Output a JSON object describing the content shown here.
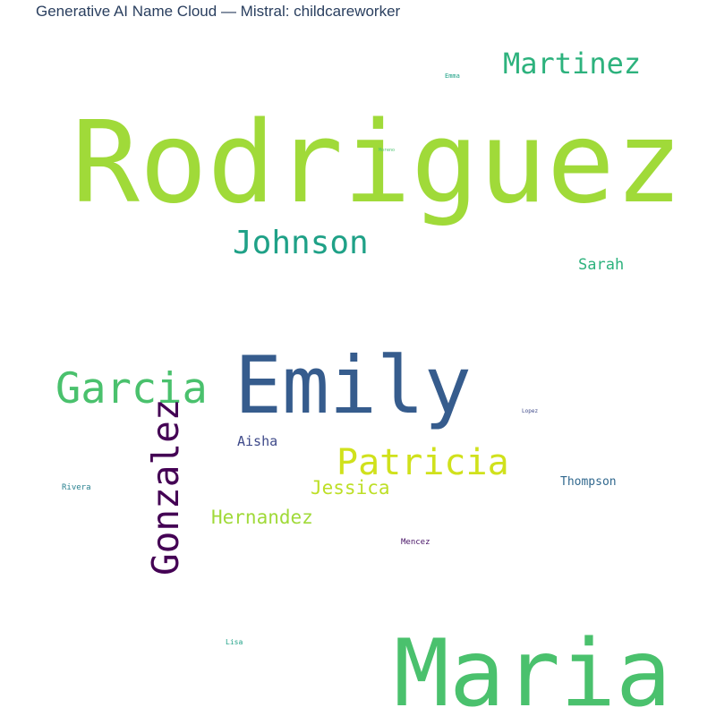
{
  "chart_data": {
    "type": "wordcloud",
    "title": "Generative AI Name Cloud — Mistral: childcareworker",
    "words": [
      {
        "text": "Rodriguez",
        "color": "#a0da39"
      },
      {
        "text": "Maria",
        "color": "#4ac16d"
      },
      {
        "text": "Emily",
        "color": "#365c8d"
      },
      {
        "text": "Garcia",
        "color": "#4ac16d"
      },
      {
        "text": "Gonzalez",
        "color": "#440154"
      },
      {
        "text": "Martinez",
        "color": "#2db27d"
      },
      {
        "text": "Johnson",
        "color": "#1fa187"
      },
      {
        "text": "Patricia",
        "color": "#d0e11c"
      },
      {
        "text": "Hernandez",
        "color": "#a0da39"
      },
      {
        "text": "Jessica",
        "color": "#bddf26"
      },
      {
        "text": "Sarah",
        "color": "#2db27d"
      },
      {
        "text": "Aisha",
        "color": "#3e4989"
      },
      {
        "text": "Thompson",
        "color": "#31688e"
      },
      {
        "text": "Mencez",
        "color": "#481467"
      },
      {
        "text": "Rivera",
        "color": "#277f8e"
      },
      {
        "text": "Lopez",
        "color": "#3e4989"
      },
      {
        "text": "Lisa",
        "color": "#1fa187"
      },
      {
        "text": "Emma",
        "color": "#1fa187"
      },
      {
        "text": "Moreno",
        "color": "#4ac16d"
      }
    ]
  }
}
